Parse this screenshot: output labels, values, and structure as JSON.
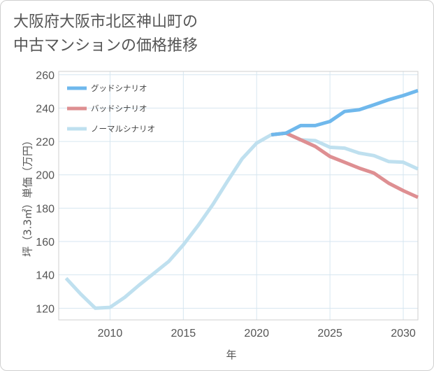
{
  "title_lines": [
    "大阪府大阪市北区神山町の",
    "中古マンションの価格推移"
  ],
  "chart_data": {
    "type": "line",
    "xlabel": "年",
    "ylabel": "坪（3.3㎡）単価（万円）",
    "xlim": [
      2006.5,
      2031
    ],
    "ylim": [
      113,
      262
    ],
    "xticks": [
      2010,
      2015,
      2020,
      2025,
      2030
    ],
    "yticks": [
      120,
      140,
      160,
      180,
      200,
      220,
      240,
      260
    ],
    "grid": true,
    "legend_position": "top-left",
    "series": [
      {
        "name": "グッドシナリオ",
        "color": "#6fb8ec",
        "x": [
          2021,
          2022,
          2023,
          2024,
          2025,
          2026,
          2027,
          2028,
          2029,
          2030,
          2031
        ],
        "y": [
          224,
          225,
          229.5,
          229.5,
          232,
          238,
          239,
          242,
          245,
          247.5,
          250.5
        ]
      },
      {
        "name": "バッドシナリオ",
        "color": "#de8f92",
        "x": [
          2021,
          2022,
          2023,
          2024,
          2025,
          2026,
          2027,
          2028,
          2029,
          2030,
          2031
        ],
        "y": [
          224,
          225,
          221,
          217,
          211,
          207.5,
          204,
          201,
          195,
          190.5,
          186.5
        ]
      },
      {
        "name": "ノーマルシナリオ",
        "color": "#bfe0ef",
        "x": [
          2007,
          2008,
          2009,
          2010,
          2011,
          2012,
          2013,
          2014,
          2015,
          2016,
          2017,
          2018,
          2019,
          2020,
          2021,
          2022,
          2023,
          2024,
          2025,
          2026,
          2027,
          2028,
          2029,
          2030,
          2031
        ],
        "y": [
          138,
          128.5,
          120,
          120.5,
          126.5,
          134,
          141,
          148,
          158,
          169.5,
          182,
          196,
          209.5,
          219,
          224,
          225,
          221,
          220.5,
          216.5,
          216,
          213,
          211.5,
          208,
          207.5,
          203.5
        ]
      }
    ]
  }
}
